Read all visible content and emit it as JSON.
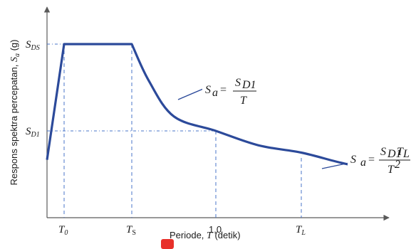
{
  "chart_data": {
    "type": "line",
    "title": "",
    "ylabel_prefix": "Respons spektra percepatan, ",
    "ylabel_symbol": "S",
    "ylabel_sub": "a",
    "ylabel_suffix": " (g)",
    "xlabel_prefix": "Periode, ",
    "xlabel_symbol": "T",
    "xlabel_suffix": " (detik)",
    "x_ticks": [
      {
        "main": "T",
        "sub": "0",
        "x": 0.2
      },
      {
        "main": "T",
        "sub": "S",
        "x": 1.0
      },
      {
        "main": "1,0",
        "sub": "",
        "x": 2.0
      },
      {
        "main": "T",
        "sub": "L",
        "x": 3.0
      }
    ],
    "y_ticks": [
      {
        "main": "S",
        "sub": "DS",
        "y": 1.0
      },
      {
        "main": "S",
        "sub": "D1",
        "y": 0.6
      }
    ],
    "x_range": [
      0,
      4.1
    ],
    "y_range": [
      0,
      1.2
    ],
    "series": [
      {
        "x": [
          0.0,
          0.2,
          1.0,
          1.2,
          1.5,
          2.0,
          2.5,
          3.0,
          3.5,
          4.0
        ],
        "y": [
          0.4,
          1.0,
          1.0,
          0.833,
          0.667,
          0.6,
          0.5,
          0.45,
          0.38,
          0.32
        ]
      }
    ],
    "annotations": [
      {
        "id": "eq1",
        "lhs": "S",
        "lhs_sub": "a",
        "eq": "=",
        "num": "S",
        "num_sub": "D1",
        "den": "T"
      },
      {
        "id": "eq2",
        "lhs": "S",
        "lhs_sub": "a",
        "eq": "=",
        "num": "S",
        "num_sub": "D1",
        "num_tail": "T",
        "num_tail_sub": "L",
        "den": "T",
        "den_sup": "2"
      }
    ],
    "grid": false,
    "legend": "none",
    "colors": {
      "curve": "#2c4a9a",
      "guides": "#4a74c9",
      "axes": "#5a5a5a"
    }
  }
}
